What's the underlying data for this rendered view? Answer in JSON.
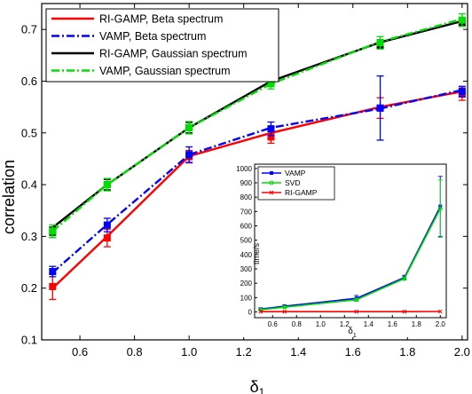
{
  "chart_data": [
    {
      "type": "line",
      "xlabel": "δ1",
      "ylabel": "correlation",
      "xlim": [
        0.46,
        2.02
      ],
      "ylim": [
        0.1,
        0.75
      ],
      "xticks": [
        "0.6",
        "0.8",
        "1.0",
        "1.2",
        "1.4",
        "1.6",
        "1.8",
        "2.0"
      ],
      "yticks": [
        "0.1",
        "0.2",
        "0.3",
        "0.4",
        "0.5",
        "0.6",
        "0.7"
      ],
      "grid": false,
      "legend_position": "top-left",
      "x": [
        0.5,
        0.7,
        1.0,
        1.3,
        1.7,
        2.0
      ],
      "series": [
        {
          "name": "RI-GAMP, Beta spectrum",
          "color": "#ff0000",
          "dash": "solid",
          "marker": "square",
          "values": [
            0.2,
            0.3,
            0.455,
            0.5,
            0.55,
            0.58
          ],
          "markers": [
            0.203,
            0.297,
            0.454,
            0.492,
            0.548,
            0.575
          ],
          "errors": [
            0.025,
            0.017,
            0.012,
            0.012,
            0.02,
            0.012
          ]
        },
        {
          "name": "VAMP, Beta spectrum",
          "color": "#0000ff",
          "dash": "dashdot",
          "marker": "square",
          "values": [
            0.23,
            0.323,
            0.458,
            0.51,
            0.547,
            0.583
          ],
          "markers": [
            0.232,
            0.322,
            0.458,
            0.508,
            0.548,
            0.58
          ],
          "errors": [
            0.01,
            0.013,
            0.015,
            0.013,
            0.062,
            0.01
          ]
        },
        {
          "name": "RI-GAMP, Gaussian spectrum",
          "color": "#000000",
          "dash": "solid",
          "marker": "square",
          "values": [
            0.317,
            0.4,
            0.51,
            0.6,
            0.675,
            0.716
          ],
          "markers": [
            0.308,
            0.4,
            0.51,
            0.598,
            0.672,
            0.714
          ],
          "errors": [
            0.01,
            0.01,
            0.01,
            0.008,
            0.008,
            0.008
          ]
        },
        {
          "name": "VAMP, Gaussian spectrum",
          "color": "#00e000",
          "dash": "dashdot",
          "marker": "square",
          "values": [
            0.31,
            0.4,
            0.51,
            0.595,
            0.676,
            0.72
          ],
          "markers": [
            0.31,
            0.4,
            0.51,
            0.595,
            0.674,
            0.718
          ],
          "errors": [
            0.012,
            0.012,
            0.012,
            0.01,
            0.012,
            0.012
          ]
        }
      ]
    },
    {
      "type": "line",
      "xlabel": "δ1",
      "ylabel": "time/s",
      "xlim": [
        0.45,
        2.05
      ],
      "ylim": [
        -40,
        1030
      ],
      "xticks": [
        "0.6",
        "0.8",
        "1.0",
        "1.2",
        "1.4",
        "1.6",
        "1.8",
        "2.0"
      ],
      "yticks": [
        "0",
        "100",
        "200",
        "300",
        "400",
        "500",
        "600",
        "700",
        "800",
        "900",
        "1000"
      ],
      "grid": false,
      "legend_position": "top-left",
      "x": [
        0.5,
        0.7,
        1.3,
        1.7,
        2.0
      ],
      "series": [
        {
          "name": "VAMP",
          "color": "#0000ff",
          "marker": "square",
          "values": [
            20,
            40,
            95,
            240,
            735
          ],
          "errors": [
            8,
            8,
            20,
            15,
            210
          ]
        },
        {
          "name": "SVD",
          "color": "#00dd00",
          "marker": "circle",
          "values": [
            15,
            33,
            85,
            232,
            720
          ],
          "errors": [
            5,
            5,
            10,
            10,
            200
          ]
        },
        {
          "name": "RI-GAMP",
          "color": "#ff0000",
          "marker": "x",
          "values": [
            2,
            2,
            2,
            2,
            3
          ],
          "errors": [
            0,
            0,
            0,
            0,
            0
          ]
        }
      ]
    }
  ]
}
